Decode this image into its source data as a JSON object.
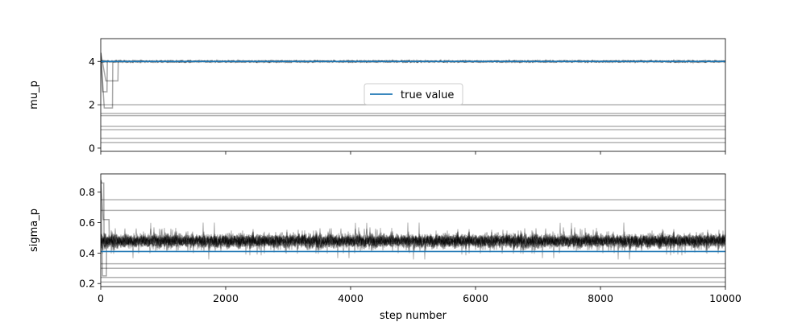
{
  "chart_data": [
    {
      "type": "line",
      "ylabel": "mu_p",
      "xlim": [
        0,
        10000
      ],
      "ylim": [
        -0.15,
        5.05
      ],
      "yticks": [
        0,
        2,
        4
      ],
      "xticks": [
        0,
        2000,
        4000,
        6000,
        8000,
        10000
      ],
      "x_ticklabels_shown": false,
      "legend": {
        "placement": "center",
        "entries": [
          "true value"
        ]
      },
      "true_value": 4.0,
      "true_value_color": "#1f77b4",
      "trace_color": "#000000",
      "converged_chains": {
        "center": 4.0,
        "spread": 0.05,
        "burn_in_steps": 250
      },
      "stuck_chains": [
        0.25,
        0.45,
        0.85,
        1.0,
        1.5,
        1.6,
        2.0
      ]
    },
    {
      "type": "line",
      "ylabel": "sigma_p",
      "xlabel": "step number",
      "xlim": [
        0,
        10000
      ],
      "ylim": [
        0.18,
        0.92
      ],
      "yticks": [
        0.2,
        0.4,
        0.6,
        0.8
      ],
      "xticks": [
        0,
        2000,
        4000,
        6000,
        8000,
        10000
      ],
      "x_ticklabels": [
        "0",
        "2000",
        "4000",
        "6000",
        "8000",
        "10000"
      ],
      "true_value": 0.41,
      "true_value_color": "#1f77b4",
      "trace_color": "#000000",
      "converged_chains": {
        "center": 0.48,
        "spread": 0.045,
        "burn_in_steps": 120
      },
      "stuck_chains": [
        0.21,
        0.24,
        0.3,
        0.33,
        0.68,
        0.75
      ]
    }
  ]
}
